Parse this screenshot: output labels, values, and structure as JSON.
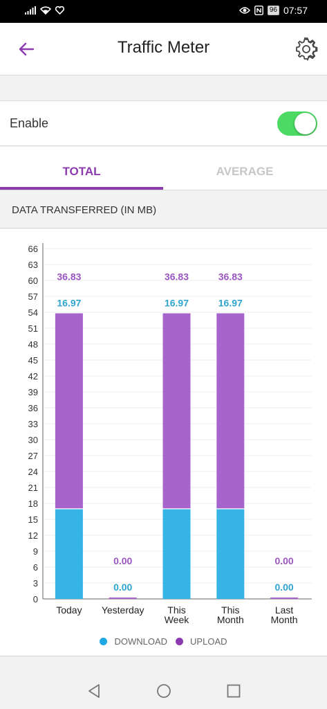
{
  "status_bar": {
    "battery": "96",
    "time": "07:57"
  },
  "app_bar": {
    "title": "Traffic Meter"
  },
  "enable": {
    "label": "Enable",
    "on": true
  },
  "tabs": [
    {
      "label": "TOTAL",
      "active": true
    },
    {
      "label": "AVERAGE",
      "active": false
    }
  ],
  "section": {
    "title": "DATA TRANSFERRED (IN MB)"
  },
  "legend": {
    "download": "DOWNLOAD",
    "upload": "UPLOAD"
  },
  "colors": {
    "accent": "#8c3ab0",
    "download": "#36b4e5",
    "upload": "#a764cc",
    "toggle_on": "#4cd964"
  },
  "chart_data": {
    "type": "bar",
    "stacked": true,
    "categories": [
      [
        "Today"
      ],
      [
        "Yesterday"
      ],
      [
        "This",
        "Week"
      ],
      [
        "This",
        "Month"
      ],
      [
        "Last",
        "Month"
      ]
    ],
    "series": [
      {
        "name": "DOWNLOAD",
        "values": [
          16.97,
          0.0,
          16.97,
          16.97,
          0.0
        ],
        "labels": [
          "16.97",
          "0.00",
          "16.97",
          "16.97",
          "0.00"
        ]
      },
      {
        "name": "UPLOAD",
        "values": [
          36.83,
          0.0,
          36.83,
          36.83,
          0.0
        ],
        "labels": [
          "36.83",
          "0.00",
          "36.83",
          "36.83",
          "0.00"
        ]
      }
    ],
    "yticks": [
      0,
      3,
      6,
      9,
      12,
      15,
      18,
      21,
      24,
      27,
      30,
      33,
      36,
      39,
      42,
      45,
      48,
      51,
      54,
      57,
      60,
      63,
      66
    ],
    "ylim": [
      0,
      66
    ],
    "grid": true
  }
}
